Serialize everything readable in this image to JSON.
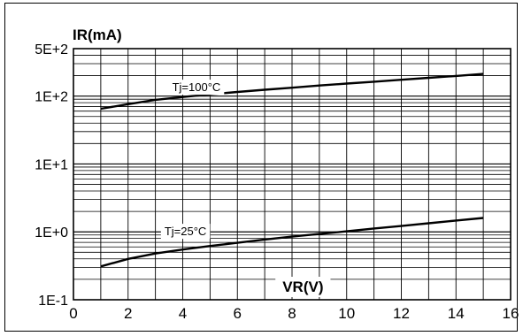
{
  "chart_data": {
    "type": "line",
    "ylabel": "IR(mA)",
    "xlabel": "VR(V)",
    "xlim": [
      0,
      16
    ],
    "ylim": [
      0.1,
      500
    ],
    "y_scale": "log",
    "grid": true,
    "x_ticks": [
      0,
      2,
      4,
      6,
      8,
      10,
      12,
      14,
      16
    ],
    "x_tick_labels": [
      "0",
      "2",
      "4",
      "6",
      "8",
      "10",
      "12",
      "14",
      "16"
    ],
    "y_ticks": [
      0.1,
      1,
      10,
      100,
      500
    ],
    "y_tick_labels": [
      "1E-1",
      "1E+0",
      "1E+1",
      "1E+2",
      "5E+2"
    ],
    "series": [
      {
        "name": "Tj=100°C",
        "color": "#000000",
        "x": [
          1,
          2,
          3,
          4,
          5,
          6,
          7,
          8,
          9,
          10,
          11,
          12,
          13,
          14,
          15
        ],
        "y": [
          65,
          76,
          88,
          97,
          106,
          115,
          124,
          133,
          143,
          153,
          163,
          174,
          186,
          198,
          212
        ]
      },
      {
        "name": "Tj=25°C",
        "color": "#000000",
        "x": [
          1,
          2,
          3,
          4,
          5,
          6,
          7,
          8,
          9,
          10,
          11,
          12,
          13,
          14,
          15
        ],
        "y": [
          0.31,
          0.4,
          0.48,
          0.55,
          0.62,
          0.69,
          0.77,
          0.85,
          0.93,
          1.02,
          1.12,
          1.22,
          1.34,
          1.47,
          1.6
        ]
      }
    ]
  }
}
